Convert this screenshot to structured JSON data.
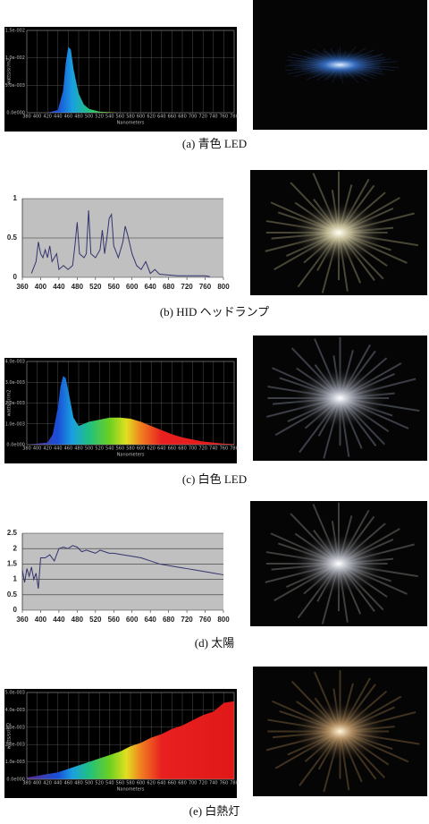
{
  "chart_data": [
    {
      "type": "area",
      "caption": "(a) 青色 LED",
      "xlabel": "Nanometers",
      "ylabel": "watts/sr/m2",
      "x": [
        380,
        420,
        440,
        450,
        455,
        460,
        465,
        470,
        480,
        490,
        500,
        520,
        560,
        780
      ],
      "values": [
        0,
        0,
        0.0005,
        0.004,
        0.009,
        0.012,
        0.0115,
        0.008,
        0.0035,
        0.0015,
        0.0007,
        0.0002,
        0,
        0
      ],
      "xlim": [
        380,
        780
      ],
      "xticks": [
        380,
        400,
        420,
        440,
        460,
        480,
        500,
        520,
        540,
        560,
        580,
        600,
        620,
        640,
        660,
        680,
        700,
        720,
        740,
        760,
        780
      ],
      "ylim": [
        0,
        0.015
      ],
      "yticks": [
        {
          "value": 0,
          "label": "0.0e000"
        },
        {
          "value": 0.005,
          "label": "5.0e-003"
        },
        {
          "value": 0.01,
          "label": "1.0e-002"
        },
        {
          "value": 0.015,
          "label": "1.5e-002"
        }
      ],
      "grid": true
    },
    {
      "type": "line",
      "caption": "(b) HID ヘッドランプ",
      "color": "#33336e",
      "x": [
        380,
        390,
        395,
        400,
        405,
        410,
        415,
        420,
        425,
        435,
        440,
        450,
        460,
        470,
        475,
        480,
        485,
        495,
        500,
        505,
        510,
        520,
        530,
        535,
        540,
        545,
        550,
        555,
        560,
        570,
        580,
        585,
        590,
        600,
        610,
        620,
        630,
        640,
        650,
        660,
        700,
        760,
        770
      ],
      "values": [
        0.05,
        0.2,
        0.45,
        0.3,
        0.25,
        0.35,
        0.25,
        0.4,
        0.2,
        0.3,
        0.1,
        0.15,
        0.1,
        0.15,
        0.4,
        0.7,
        0.3,
        0.25,
        0.3,
        0.85,
        0.3,
        0.25,
        0.35,
        0.6,
        0.3,
        0.5,
        0.75,
        0.8,
        0.4,
        0.25,
        0.45,
        0.65,
        0.55,
        0.3,
        0.15,
        0.1,
        0.2,
        0.05,
        0.1,
        0.04,
        0.02,
        0.02,
        0.01
      ],
      "xlim": [
        360,
        800
      ],
      "xticks": [
        360,
        400,
        440,
        480,
        520,
        560,
        600,
        640,
        680,
        720,
        760,
        800
      ],
      "ylim": [
        0,
        1
      ],
      "yticks": [
        0,
        0.5,
        1
      ],
      "grid": true
    },
    {
      "type": "area",
      "caption": "(c) 白色 LED",
      "xlabel": "Nanometers",
      "ylabel": "watts/sr/m2",
      "x": [
        380,
        420,
        430,
        440,
        445,
        450,
        455,
        460,
        470,
        480,
        490,
        500,
        520,
        540,
        560,
        580,
        600,
        620,
        640,
        660,
        680,
        700,
        720,
        740,
        760,
        780
      ],
      "values": [
        0,
        0.0001,
        0.0005,
        0.0018,
        0.0028,
        0.0033,
        0.0032,
        0.0026,
        0.0013,
        0.0009,
        0.001,
        0.0011,
        0.0012,
        0.0013,
        0.0013,
        0.00125,
        0.0011,
        0.0009,
        0.0007,
        0.0005,
        0.00035,
        0.00025,
        0.00015,
        0.0001,
        5e-05,
        3e-05
      ],
      "xlim": [
        380,
        780
      ],
      "xticks": [
        380,
        400,
        420,
        440,
        460,
        480,
        500,
        520,
        540,
        560,
        580,
        600,
        620,
        640,
        660,
        680,
        700,
        720,
        740,
        760,
        780
      ],
      "ylim": [
        0,
        0.004
      ],
      "yticks": [
        {
          "value": 0,
          "label": "0.0e000"
        },
        {
          "value": 0.001,
          "label": "1.0e-003"
        },
        {
          "value": 0.002,
          "label": "2.0e-003"
        },
        {
          "value": 0.003,
          "label": "3.0e-003"
        },
        {
          "value": 0.004,
          "label": "4.0e-003"
        }
      ],
      "grid": true
    },
    {
      "type": "line",
      "caption": "(d) 太陽",
      "color": "#33336e",
      "x": [
        360,
        365,
        370,
        375,
        380,
        385,
        390,
        395,
        400,
        410,
        420,
        430,
        440,
        450,
        460,
        470,
        480,
        490,
        500,
        510,
        520,
        530,
        540,
        550,
        560,
        580,
        600,
        620,
        640,
        660,
        680,
        700,
        720,
        740,
        760,
        780,
        800
      ],
      "values": [
        1.3,
        0.9,
        1.35,
        1.1,
        1.4,
        1.0,
        1.2,
        0.7,
        1.7,
        1.7,
        1.8,
        1.6,
        2.0,
        2.05,
        2.0,
        2.1,
        2.05,
        1.9,
        1.95,
        1.9,
        1.85,
        1.95,
        1.9,
        1.85,
        1.85,
        1.8,
        1.75,
        1.7,
        1.6,
        1.5,
        1.45,
        1.4,
        1.35,
        1.3,
        1.25,
        1.2,
        1.15
      ],
      "xlim": [
        360,
        800
      ],
      "xticks": [
        360,
        400,
        440,
        480,
        520,
        560,
        600,
        640,
        680,
        720,
        760,
        800
      ],
      "ylim": [
        0,
        2.5
      ],
      "yticks": [
        0,
        0.5,
        1,
        1.5,
        2,
        2.5
      ],
      "grid": true
    },
    {
      "type": "area",
      "caption": "(e) 白熱灯",
      "xlabel": "Nanometers",
      "ylabel": "watts/sr/m2",
      "x": [
        380,
        400,
        420,
        440,
        460,
        480,
        500,
        520,
        540,
        560,
        580,
        600,
        620,
        640,
        660,
        680,
        700,
        720,
        740,
        760,
        780
      ],
      "values": [
        0.0001,
        0.0002,
        0.0003,
        0.0004,
        0.0006,
        0.0008,
        0.001,
        0.0012,
        0.0014,
        0.0016,
        0.0019,
        0.0021,
        0.0024,
        0.0026,
        0.0029,
        0.0031,
        0.0034,
        0.0037,
        0.0039,
        0.0044,
        0.0045
      ],
      "xlim": [
        380,
        780
      ],
      "xticks": [
        380,
        400,
        420,
        440,
        460,
        480,
        500,
        520,
        540,
        560,
        580,
        600,
        620,
        640,
        660,
        680,
        700,
        720,
        740,
        760,
        780
      ],
      "ylim": [
        0,
        0.005
      ],
      "yticks": [
        {
          "value": 0,
          "label": "0.0e000"
        },
        {
          "value": 0.001,
          "label": "1.0e-003"
        },
        {
          "value": 0.002,
          "label": "2.0e-003"
        },
        {
          "value": 0.003,
          "label": "3.0e-003"
        },
        {
          "value": 0.004,
          "label": "4.0e-003"
        },
        {
          "value": 0.005,
          "label": "5.0e-003"
        }
      ],
      "grid": true
    }
  ]
}
